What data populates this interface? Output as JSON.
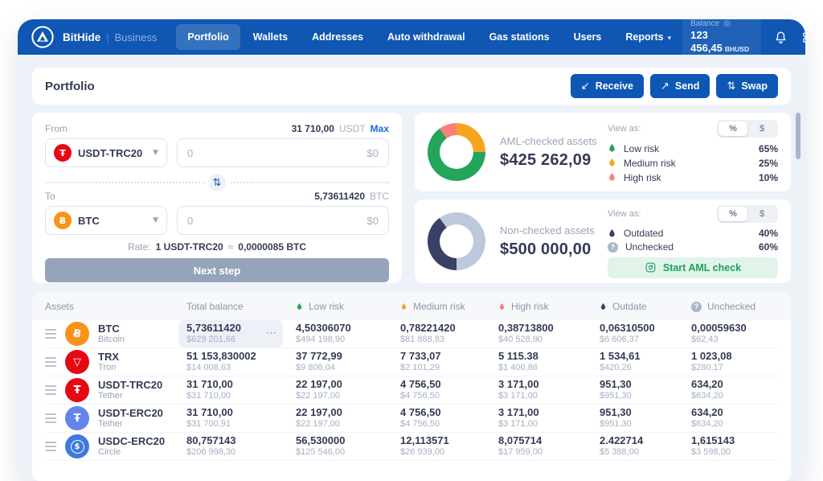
{
  "nav": {
    "brand": "BitHide",
    "brand_divider": "|",
    "brand_suffix": "Business",
    "items": [
      {
        "label": "Portfolio",
        "active": true
      },
      {
        "label": "Wallets"
      },
      {
        "label": "Addresses"
      },
      {
        "label": "Auto withdrawal"
      },
      {
        "label": "Gas stations"
      },
      {
        "label": "Users"
      },
      {
        "label": "Reports"
      }
    ],
    "reports_caret": "▾",
    "balance": {
      "label": "Balance",
      "eye_icon": "◎",
      "value": "123 456,45",
      "currency": "BHUSD"
    }
  },
  "header": {
    "title": "Portfolio",
    "receive_icon": "↙",
    "receive_label": "Receive",
    "send_icon": "↗",
    "send_label": "Send",
    "swap_icon": "⇅",
    "swap_label": "Swap"
  },
  "swap_form": {
    "from_label": "From",
    "from_balance": "31 710,00",
    "from_unit": "USDT",
    "max_label": "Max",
    "from_coin": {
      "glyph": "Ŧ",
      "bg": "#e50914",
      "name": "USDT-TRC20"
    },
    "from_amount_placeholder": "0",
    "from_usd_placeholder": "$0",
    "select_caret": "▼",
    "switch_icon": "⇅",
    "to_label": "To",
    "to_balance": "5,73611420",
    "to_unit": "BTC",
    "to_coin": {
      "glyph": "Ƀ",
      "bg": "#f7931a",
      "name": "BTC"
    },
    "to_amount_placeholder": "0",
    "to_usd_placeholder": "$0",
    "rate_label": "Rate:",
    "rate_base": "1 USDT-TRC20",
    "rate_approx": "≈",
    "rate_quote": "0,0000085 BTC",
    "next_label": "Next step"
  },
  "aml_checked": {
    "title": "AML-checked assets",
    "total": "$425 262,09",
    "view_as": "View as:",
    "toggle_percent": "%",
    "toggle_dollar": "$",
    "legend": [
      {
        "label": "Low risk",
        "value": "65%",
        "color": "#23a55c"
      },
      {
        "label": "Medium risk",
        "value": "25%",
        "color": "#f7a420"
      },
      {
        "label": "High risk",
        "value": "10%",
        "color": "#f8807a"
      }
    ]
  },
  "non_checked": {
    "title": "Non-checked assets",
    "total": "$500 000,00",
    "view_as": "View as:",
    "toggle_percent": "%",
    "toggle_dollar": "$",
    "legend": [
      {
        "label": "Outdated",
        "value": "40%",
        "color": "#3b4066"
      },
      {
        "label": "Unchecked",
        "value": "60%",
        "color": "#aab6c9"
      }
    ],
    "start_label": "Start AML check"
  },
  "chart_data": [
    {
      "type": "pie",
      "title": "AML-checked assets",
      "center_total": "$425 262,09",
      "labels": [
        "Low risk",
        "Medium risk",
        "High risk"
      ],
      "values": [
        65,
        25,
        10
      ],
      "colors": [
        "#23a55c",
        "#f7a420",
        "#f8807a"
      ],
      "legend_position": "right"
    },
    {
      "type": "pie",
      "title": "Non-checked assets",
      "center_total": "$500 000,00",
      "labels": [
        "Outdated",
        "Unchecked"
      ],
      "values": [
        40,
        60
      ],
      "colors": [
        "#3b4066",
        "#bdc9da"
      ],
      "legend_position": "right"
    }
  ],
  "table": {
    "columns": [
      "Assets",
      "Total balance",
      "Low risk",
      "Medium risk",
      "High risk",
      "Outdate",
      "Unchecked"
    ],
    "row_menu_icon": "⋯",
    "rows": [
      {
        "asset": "BTC",
        "network": "Bitcoin",
        "highlight_total": true,
        "icon": {
          "glyph": "Ƀ",
          "bg": "#f7931a",
          "tilt": true,
          "ring": false
        },
        "total": {
          "amount": "5,73611420",
          "usd": "$629 201,66"
        },
        "low": {
          "amount": "4,50306070",
          "usd": "$494 198,90"
        },
        "medium": {
          "amount": "0,78221420",
          "usd": "$81 888,83"
        },
        "high": {
          "amount": "0,38713800",
          "usd": "$40 528,90"
        },
        "outdate": {
          "amount": "0,06310500",
          "usd": "$6 606,37"
        },
        "unchecked": {
          "amount": "0,00059630",
          "usd": "$62,43"
        }
      },
      {
        "asset": "TRX",
        "network": "Tron",
        "highlight_total": false,
        "icon": {
          "glyph": "▽",
          "bg": "#e50914",
          "tilt": false,
          "ring": false
        },
        "total": {
          "amount": "51 153,830002",
          "usd": "$14 008,63"
        },
        "low": {
          "amount": "37 772,99",
          "usd": "$9 806,04"
        },
        "medium": {
          "amount": "7 733,07",
          "usd": "$2 101,29"
        },
        "high": {
          "amount": "5 115.38",
          "usd": "$1 400,86"
        },
        "outdate": {
          "amount": "1 534,61",
          "usd": "$420,26"
        },
        "unchecked": {
          "amount": "1 023,08",
          "usd": "$280,17"
        }
      },
      {
        "asset": "USDT-TRC20",
        "network": "Tether",
        "highlight_total": false,
        "icon": {
          "glyph": "Ŧ",
          "bg": "#e50914",
          "tilt": false,
          "ring": false
        },
        "total": {
          "amount": "31 710,00",
          "usd": "$31 710,00"
        },
        "low": {
          "amount": "22 197,00",
          "usd": "$22 197,00"
        },
        "medium": {
          "amount": "4 756,50",
          "usd": "$4 756,50"
        },
        "high": {
          "amount": "3 171,00",
          "usd": "$3 171,00"
        },
        "outdate": {
          "amount": "951,30",
          "usd": "$951,30"
        },
        "unchecked": {
          "amount": "634,20",
          "usd": "$634,20"
        }
      },
      {
        "asset": "USDT-ERC20",
        "network": "Tether",
        "highlight_total": false,
        "icon": {
          "glyph": "Ŧ",
          "bg": "#6383ef",
          "tilt": false,
          "ring": false
        },
        "total": {
          "amount": "31 710,00",
          "usd": "$31 700,91"
        },
        "low": {
          "amount": "22 197,00",
          "usd": "$22 197,00"
        },
        "medium": {
          "amount": "4 756,50",
          "usd": "$4 756,50"
        },
        "high": {
          "amount": "3 171,00",
          "usd": "$3 171,00"
        },
        "outdate": {
          "amount": "951,30",
          "usd": "$951,30"
        },
        "unchecked": {
          "amount": "634,20",
          "usd": "$634,20"
        }
      },
      {
        "asset": "USDC-ERC20",
        "network": "Circle",
        "highlight_total": false,
        "icon": {
          "glyph": "$",
          "bg": "#3f78e0",
          "tilt": false,
          "ring": true
        },
        "total": {
          "amount": "80,757143",
          "usd": "$206 998,30"
        },
        "low": {
          "amount": "56,530000",
          "usd": "$125 546,00"
        },
        "medium": {
          "amount": "12,113571",
          "usd": "$26 939,00"
        },
        "high": {
          "amount": "8,075714",
          "usd": "$17 959,00"
        },
        "outdate": {
          "amount": "2.422714",
          "usd": "$5 388,00"
        },
        "unchecked": {
          "amount": "1,615143",
          "usd": "$3 598,00"
        }
      }
    ]
  }
}
